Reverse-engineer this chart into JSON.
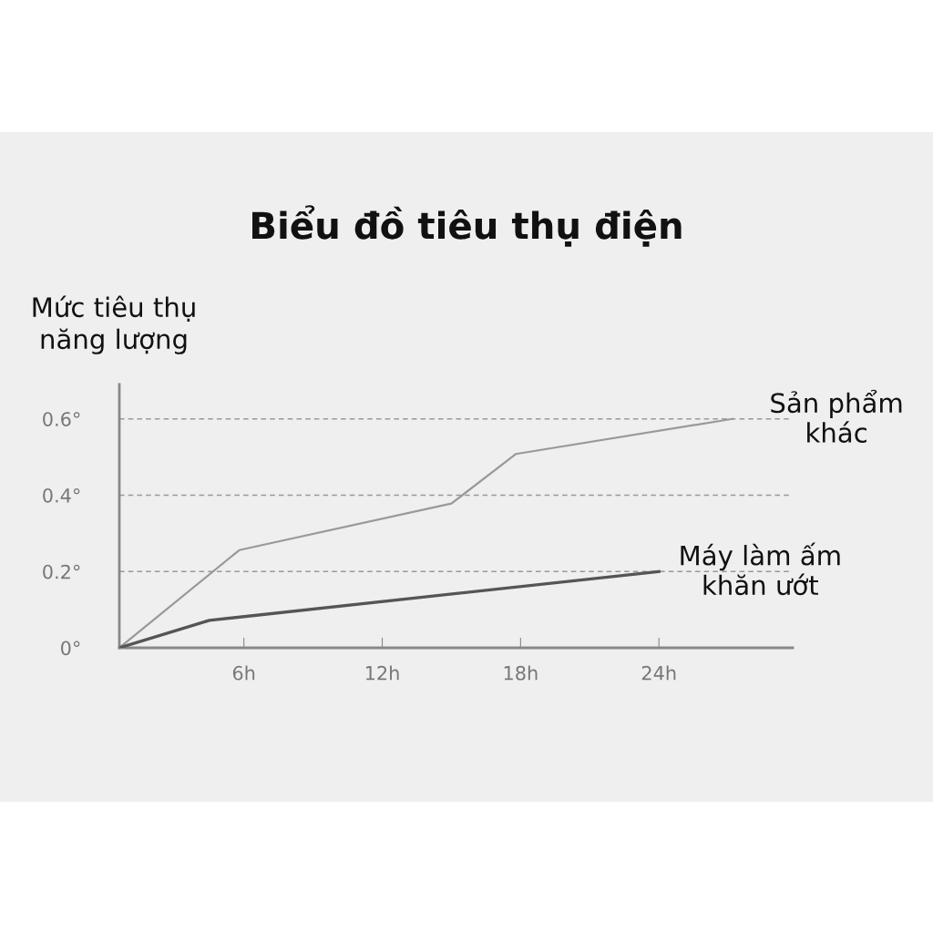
{
  "chart_data": {
    "type": "line",
    "title": "Biểu đồ tiêu thụ điện",
    "ylabel": "Mức tiêu thụ\nnăng lượng",
    "xlim": [
      0.6,
      29.8
    ],
    "xticks": [
      {
        "value": 6,
        "label": "6h"
      },
      {
        "value": 12,
        "label": "12h"
      },
      {
        "value": 18,
        "label": "18h"
      },
      {
        "value": 24,
        "label": "24h"
      }
    ],
    "ylim": [
      0,
      0.69
    ],
    "yticks": [
      {
        "value": 0,
        "label": "0°"
      },
      {
        "value": 0.2,
        "label": "0.2°"
      },
      {
        "value": 0.4,
        "label": "0.4°"
      },
      {
        "value": 0.6,
        "label": "0.6°"
      }
    ],
    "grid": "y",
    "legend": false,
    "marker": "none",
    "line_style": "solid",
    "series": [
      {
        "name": "Sản phẩm\nkhác",
        "color": "#999999",
        "x": [
          0.6,
          5.8,
          15.0,
          17.8,
          27.2
        ],
        "values": [
          0,
          0.256,
          0.378,
          0.508,
          0.6
        ]
      },
      {
        "name": "Máy làm ấm\nkhăn ướt",
        "color": "#555555",
        "x": [
          0.6,
          4.5,
          24
        ],
        "values": [
          0,
          0.072,
          0.2
        ]
      }
    ]
  }
}
